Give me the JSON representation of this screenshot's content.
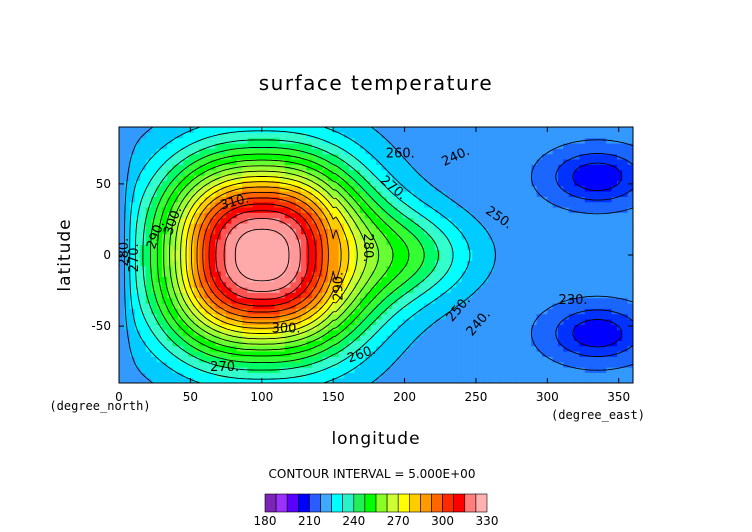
{
  "chart_data": {
    "type": "heatmap",
    "title": "surface temperature",
    "xlabel": "longitude",
    "ylabel": "latitude",
    "xunit": "(degree_east)",
    "yunit": "(degree_north)",
    "xlim": [
      0,
      360
    ],
    "ylim": [
      -90,
      90
    ],
    "x_ticks": [
      "0",
      "50",
      "100",
      "150",
      "200",
      "250",
      "300",
      "350"
    ],
    "y_ticks": [
      "-50",
      "0",
      "50"
    ],
    "field": {
      "description_values": "approximate surface temperature field read from filled contours",
      "warm_center": {
        "lon": 100,
        "lat": 0,
        "value": 327
      },
      "cold_centers": [
        {
          "lon": 335,
          "lat": 55,
          "value": 228
        },
        {
          "lon": 335,
          "lat": -55,
          "value": 228
        }
      ]
    },
    "contour_labels": [
      "260",
      "270",
      "240",
      "250",
      "310",
      "300",
      "290",
      "280",
      "270",
      "280",
      "290",
      "250",
      "240",
      "230",
      "300",
      "260",
      "270"
    ],
    "contour_interval": "CONTOUR INTERVAL = 5.000E+00",
    "colorbar": {
      "levels": [
        180,
        185,
        190,
        195,
        200,
        205,
        210,
        215,
        220,
        225,
        230,
        235,
        240,
        245,
        250,
        255,
        260,
        265,
        270,
        275,
        280,
        285,
        290,
        295,
        300,
        305,
        310,
        315,
        320,
        325,
        330
      ],
      "tick_labels": [
        "180",
        "210",
        "240",
        "270",
        "300",
        "330"
      ],
      "colors": [
        "#6b1fb0",
        "#8a2be2",
        "#5500ff",
        "#0000ff",
        "#0033ff",
        "#1a66ff",
        "#3399ff",
        "#00ccff",
        "#00ffff",
        "#33ffcc",
        "#00ff66",
        "#33ff33",
        "#00ff00",
        "#66ff33",
        "#99ff33",
        "#ccff33",
        "#ffff00",
        "#ffcc00",
        "#ff9900",
        "#ff6600",
        "#ff3300",
        "#ff0000",
        "#ff5555",
        "#ff9999",
        "#ffaaaa"
      ]
    }
  }
}
